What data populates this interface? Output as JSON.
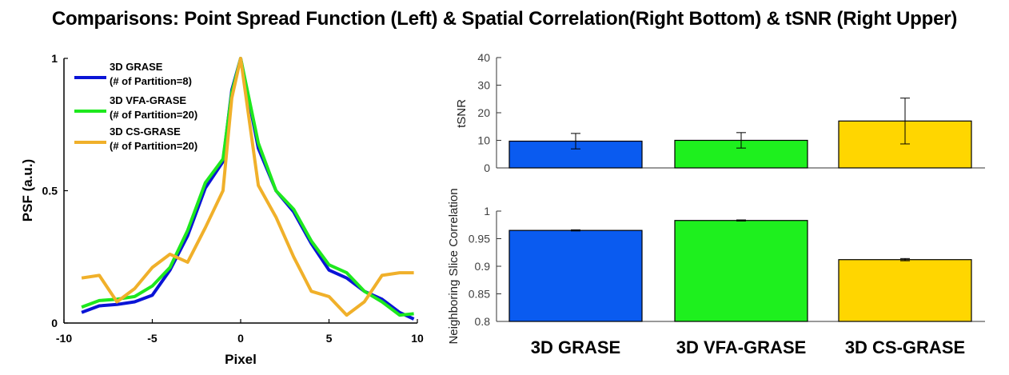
{
  "title": "Comparisons: Point Spread Function (Left) & Spatial Correlation(Right Bottom) & tSNR (Right Upper)",
  "chart_data": [
    {
      "type": "line",
      "xlabel": "Pixel",
      "ylabel": "PSF (a.u.)",
      "xlim": [
        -10,
        10
      ],
      "ylim": [
        0,
        1
      ],
      "xticks": [
        "-10",
        "-5",
        "0",
        "5",
        "10"
      ],
      "yticks": [
        "0",
        "0.5",
        "1"
      ],
      "legend_position": "top-left",
      "series": [
        {
          "name_line1": "3D GRASE",
          "name_line2": "(# of Partition=8)",
          "color": "#0a14d6",
          "x": [
            -9,
            -8,
            -7,
            -6,
            -5,
            -4,
            -3,
            -2,
            -1,
            -0.5,
            0,
            1,
            2,
            3,
            4,
            5,
            6,
            7,
            8,
            9,
            9.8
          ],
          "y": [
            0.04,
            0.065,
            0.07,
            0.08,
            0.105,
            0.2,
            0.33,
            0.51,
            0.61,
            0.88,
            1.0,
            0.66,
            0.5,
            0.42,
            0.3,
            0.2,
            0.17,
            0.12,
            0.09,
            0.04,
            0.015
          ]
        },
        {
          "name_line1": "3D VFA-GRASE",
          "name_line2": "(# of Partition=20)",
          "color": "#1ee81e",
          "x": [
            -9,
            -8,
            -7,
            -6,
            -5,
            -4,
            -3,
            -2,
            -1,
            -0.5,
            0,
            1,
            2,
            3,
            4,
            5,
            6,
            7,
            8,
            9,
            9.8
          ],
          "y": [
            0.06,
            0.085,
            0.09,
            0.1,
            0.14,
            0.21,
            0.35,
            0.53,
            0.62,
            0.87,
            1.0,
            0.68,
            0.5,
            0.43,
            0.31,
            0.22,
            0.19,
            0.12,
            0.08,
            0.03,
            0.035
          ]
        },
        {
          "name_line1": "3D CS-GRASE",
          "name_line2": "(# of Partition=20)",
          "color": "#f0b02a",
          "x": [
            -9,
            -8,
            -7,
            -6,
            -5,
            -4,
            -3,
            -2,
            -1,
            -0.5,
            0,
            1,
            2,
            3,
            4,
            5,
            6,
            7,
            8,
            9,
            9.8
          ],
          "y": [
            0.17,
            0.18,
            0.08,
            0.13,
            0.21,
            0.26,
            0.23,
            0.36,
            0.5,
            0.85,
            1.0,
            0.52,
            0.4,
            0.25,
            0.12,
            0.1,
            0.03,
            0.08,
            0.18,
            0.19,
            0.19
          ]
        }
      ]
    },
    {
      "type": "bar",
      "ylabel": "tSNR",
      "ylim": [
        0,
        40
      ],
      "yticks": [
        "0",
        "10",
        "20",
        "30",
        "40"
      ],
      "categories": [
        "3D GRASE",
        "3D VFA-GRASE",
        "3D CS-GRASE"
      ],
      "values": [
        9.7,
        10.0,
        17.0
      ],
      "errors": [
        2.8,
        2.8,
        8.3
      ],
      "colors": [
        "#0a5bf0",
        "#1ef01e",
        "#ffd600"
      ]
    },
    {
      "type": "bar",
      "ylabel": "Neighboring Slice Correlation",
      "ylim": [
        0.8,
        1
      ],
      "yticks": [
        "0.8",
        "0.85",
        "0.9",
        "0.95",
        "1"
      ],
      "categories": [
        "3D GRASE",
        "3D VFA-GRASE",
        "3D CS-GRASE"
      ],
      "values": [
        0.965,
        0.983,
        0.912
      ],
      "errors": [
        0.001,
        0.001,
        0.002
      ],
      "colors": [
        "#0a5bf0",
        "#1ef01e",
        "#ffd600"
      ]
    }
  ]
}
